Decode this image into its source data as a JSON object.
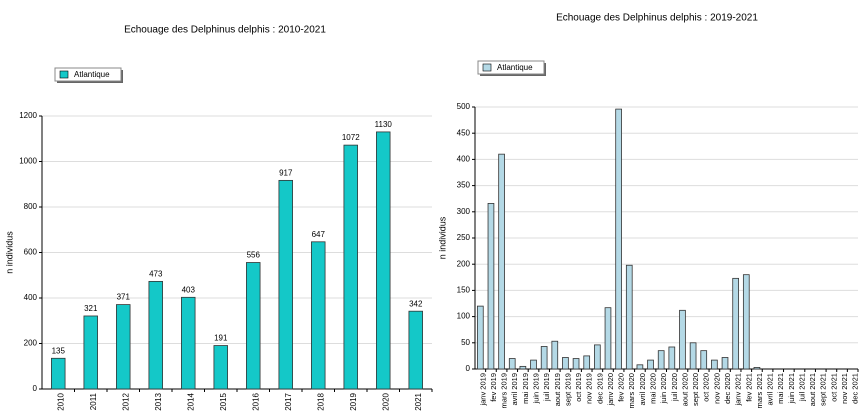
{
  "chart_data": [
    {
      "type": "bar",
      "title": "Echouage des Delphinus delphis : 2010-2021",
      "y_label": "n individus",
      "categories": [
        "2010",
        "2011",
        "2012",
        "2013",
        "2014",
        "2015",
        "2016",
        "2017",
        "2018",
        "2019",
        "2020",
        "2021"
      ],
      "series": [
        {
          "name": "Atlantique",
          "color": "#14c8c8",
          "values": [
            135,
            321,
            371,
            473,
            403,
            191,
            556,
            917,
            647,
            1072,
            1130,
            342
          ]
        }
      ],
      "ylim": [
        0,
        1200
      ],
      "yticks": [
        0,
        200,
        400,
        600,
        800,
        1000,
        1200
      ],
      "grid": true,
      "data_labels": true
    },
    {
      "type": "bar",
      "title": "Echouage des Delphinus delphis : 2019-2021",
      "y_label": "n individus",
      "categories": [
        "janv 2019",
        "fev 2019",
        "mars 2019",
        "avril 2019",
        "mai 2019",
        "juin 2019",
        "juil 2019",
        "aout 2019",
        "sept 2019",
        "oct 2019",
        "nov 2019",
        "dec 2019",
        "janv 2020",
        "fev 2020",
        "mars 2020",
        "avril 2020",
        "mai 2020",
        "juin 2020",
        "juil 2020",
        "aout 2020",
        "sept 2020",
        "oct 2020",
        "nov 2020",
        "dec 2020",
        "janv 2021",
        "fev 2021",
        "mars 2021",
        "avril 2021",
        "mai 2021",
        "juin 2021",
        "juil 2021",
        "aout 2021",
        "sept 2021",
        "oct 2021",
        "nov 2021",
        "dec 2021"
      ],
      "series": [
        {
          "name": "Atlantique",
          "color": "#b4d9e6",
          "values": [
            120,
            316,
            410,
            20,
            5,
            17,
            43,
            53,
            22,
            20,
            25,
            46,
            117,
            496,
            198,
            8,
            17,
            35,
            42,
            112,
            50,
            35,
            17,
            22,
            173,
            180,
            3,
            0,
            0,
            0,
            0,
            0,
            0,
            0,
            0,
            0
          ]
        }
      ],
      "ylim": [
        0,
        500
      ],
      "yticks": [
        0,
        50,
        100,
        150,
        200,
        250,
        300,
        350,
        400,
        450,
        500
      ],
      "grid": true,
      "data_labels": false
    }
  ]
}
